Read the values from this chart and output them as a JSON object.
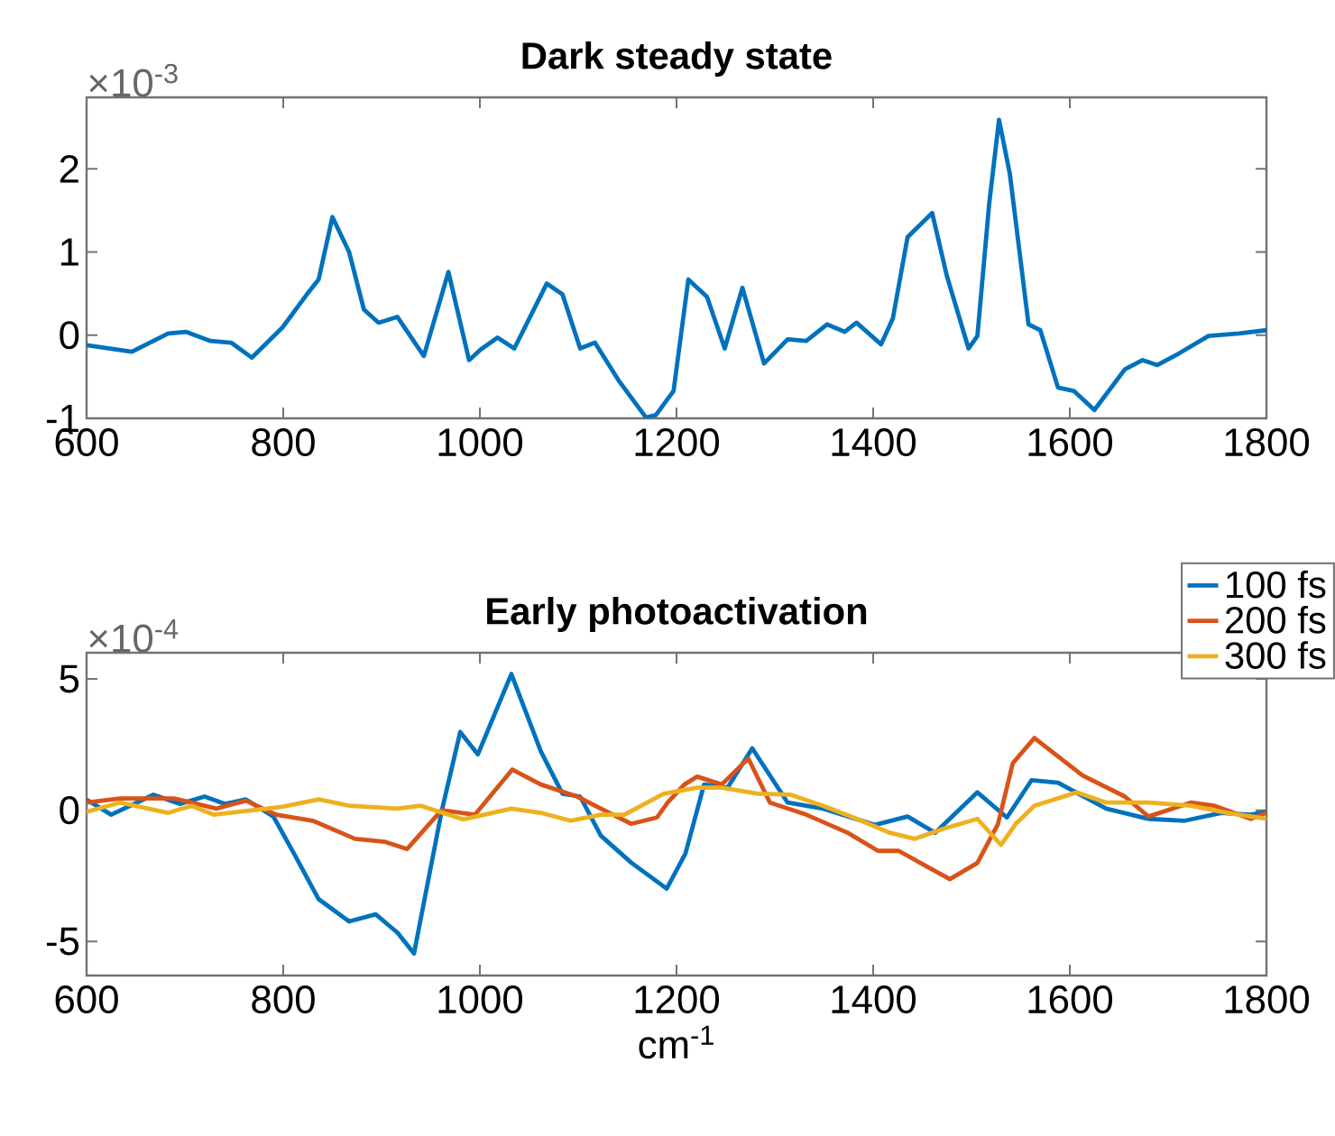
{
  "chart_data": [
    {
      "type": "line",
      "title": "Dark steady state",
      "annotations": [
        "×10$^{-3}$"
      ],
      "xlim": [
        600,
        1800
      ],
      "xticks": [
        600,
        800,
        1000,
        1200,
        1400,
        1600,
        1800
      ],
      "ylim": [
        -1,
        2.86
      ],
      "yticks": [
        -1,
        0,
        1,
        2
      ],
      "series": [
        {
          "color": "#0072bd",
          "x": [
            600,
            646,
            683,
            701,
            726,
            747,
            768,
            799,
            824,
            836,
            850,
            867,
            882,
            897,
            916,
            943,
            968,
            989,
            1001,
            1018,
            1035,
            1068,
            1084,
            1102,
            1117,
            1142,
            1169,
            1179,
            1197,
            1212,
            1231,
            1249,
            1267,
            1289,
            1313,
            1332,
            1353,
            1371,
            1383,
            1408,
            1420,
            1435,
            1460,
            1475,
            1497,
            1506,
            1518,
            1528,
            1539,
            1558,
            1570,
            1588,
            1604,
            1625,
            1656,
            1674,
            1689,
            1711,
            1741,
            1772,
            1800
          ],
          "values": [
            -0.12,
            -0.2,
            0.02,
            0.04,
            -0.07,
            -0.09,
            -0.27,
            0.09,
            0.49,
            0.67,
            1.42,
            1.0,
            0.31,
            0.15,
            0.22,
            -0.25,
            0.76,
            -0.3,
            -0.17,
            -0.03,
            -0.16,
            0.62,
            0.49,
            -0.16,
            -0.09,
            -0.56,
            -0.99,
            -0.96,
            -0.67,
            0.67,
            0.46,
            -0.16,
            0.57,
            -0.34,
            -0.05,
            -0.07,
            0.13,
            0.04,
            0.15,
            -0.11,
            0.2,
            1.18,
            1.47,
            0.71,
            -0.16,
            -0.01,
            1.58,
            2.59,
            1.94,
            0.13,
            0.06,
            -0.63,
            -0.67,
            -0.9,
            -0.41,
            -0.3,
            -0.36,
            -0.22,
            -0.01,
            0.02,
            0.06
          ]
        }
      ]
    },
    {
      "type": "line",
      "title": "Early photoactivation",
      "xlabel": "cm$^{-1}$",
      "annotations": [
        "×10$^{-4}$"
      ],
      "xlim": [
        600,
        1800
      ],
      "xticks": [
        600,
        800,
        1000,
        1200,
        1400,
        1600,
        1800
      ],
      "ylim": [
        -6.3,
        6
      ],
      "yticks": [
        -5,
        0,
        5
      ],
      "legend": "top right",
      "series": [
        {
          "name": "100 fs",
          "color": "#0072bd",
          "x": [
            600,
            625,
            668,
            695,
            720,
            741,
            762,
            790,
            811,
            836,
            867,
            894,
            916,
            933,
            961,
            980,
            998,
            1032,
            1062,
            1084,
            1102,
            1123,
            1154,
            1190,
            1209,
            1228,
            1252,
            1277,
            1313,
            1349,
            1402,
            1435,
            1463,
            1506,
            1536,
            1561,
            1588,
            1637,
            1680,
            1717,
            1754,
            1784,
            1800
          ],
          "values": [
            0.4,
            -0.17,
            0.59,
            0.24,
            0.52,
            0.24,
            0.41,
            -0.24,
            -1.66,
            -3.39,
            -4.24,
            -3.97,
            -4.66,
            -5.46,
            -0.06,
            2.98,
            2.13,
            5.19,
            2.24,
            0.63,
            0.52,
            -0.97,
            -2.0,
            -2.99,
            -1.66,
            0.98,
            0.86,
            2.36,
            0.29,
            0.06,
            -0.56,
            -0.24,
            -0.86,
            0.68,
            -0.28,
            1.14,
            1.05,
            0.06,
            -0.33,
            -0.4,
            -0.1,
            -0.17,
            -0.06
          ]
        },
        {
          "name": "200 fs",
          "color": "#d95319",
          "x": [
            600,
            634,
            689,
            732,
            762,
            793,
            830,
            873,
            903,
            926,
            961,
            995,
            1033,
            1062,
            1099,
            1123,
            1154,
            1180,
            1191,
            1208,
            1221,
            1246,
            1273,
            1295,
            1332,
            1374,
            1405,
            1426,
            1478,
            1506,
            1527,
            1542,
            1564,
            1613,
            1656,
            1680,
            1723,
            1747,
            1784,
            1800
          ],
          "values": [
            0.29,
            0.45,
            0.45,
            0.06,
            0.36,
            -0.17,
            -0.4,
            -1.09,
            -1.2,
            -1.48,
            0.0,
            -0.17,
            1.55,
            0.98,
            0.52,
            0.06,
            -0.52,
            -0.28,
            0.29,
            0.98,
            1.28,
            0.98,
            1.97,
            0.29,
            -0.17,
            -0.86,
            -1.55,
            -1.55,
            -2.63,
            -2.01,
            -0.52,
            1.79,
            2.75,
            1.32,
            0.52,
            -0.24,
            0.29,
            0.17,
            -0.33,
            -0.1
          ]
        },
        {
          "name": "300 fs",
          "color": "#edb120",
          "x": [
            600,
            634,
            683,
            707,
            729,
            769,
            799,
            836,
            867,
            916,
            940,
            983,
            1032,
            1062,
            1092,
            1123,
            1147,
            1187,
            1221,
            1246,
            1283,
            1316,
            1349,
            1380,
            1417,
            1442,
            1472,
            1506,
            1530,
            1545,
            1564,
            1607,
            1637,
            1680,
            1723,
            1760,
            1800
          ],
          "values": [
            -0.06,
            0.29,
            -0.1,
            0.17,
            -0.17,
            0.0,
            0.13,
            0.41,
            0.17,
            0.06,
            0.17,
            -0.35,
            0.06,
            -0.1,
            -0.4,
            -0.17,
            -0.17,
            0.63,
            0.86,
            0.86,
            0.63,
            0.59,
            0.17,
            -0.28,
            -0.86,
            -1.09,
            -0.7,
            -0.33,
            -1.32,
            -0.52,
            0.17,
            0.68,
            0.29,
            0.29,
            0.17,
            -0.1,
            -0.33
          ]
        }
      ]
    }
  ]
}
